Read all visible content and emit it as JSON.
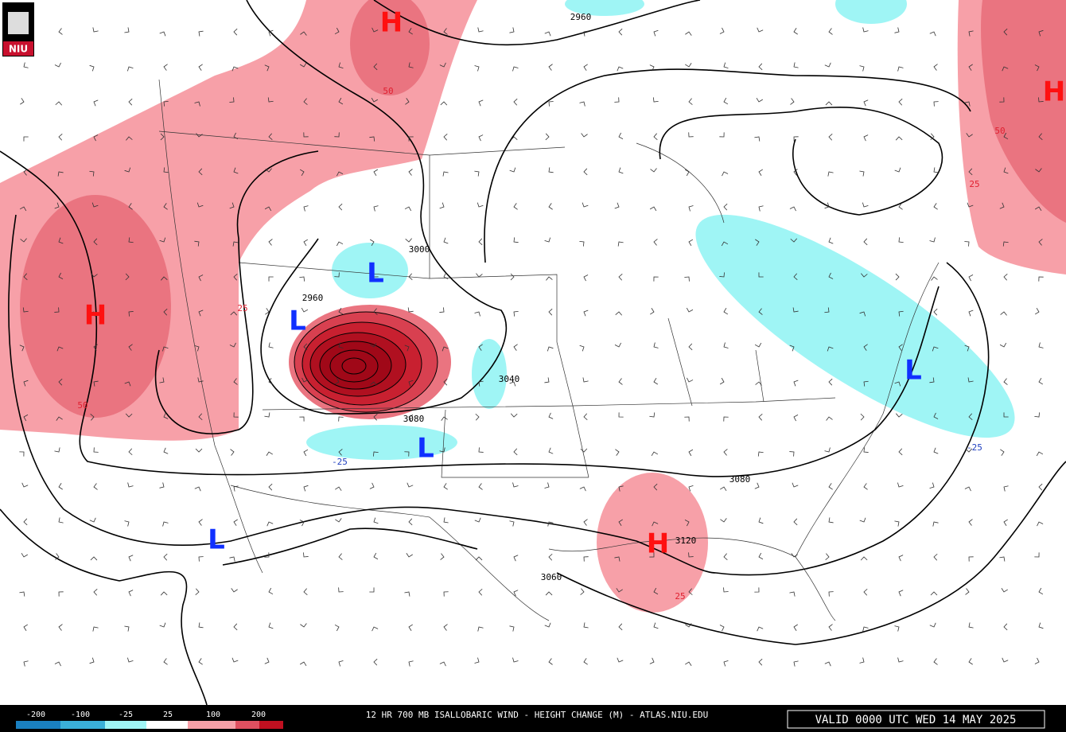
{
  "logo": "NIU",
  "title": "12 HR 700 MB ISALLOBARIC WIND - HEIGHT CHANGE (M) - ATLAS.NIU.EDU",
  "valid": "VALID 0000 UTC WED 14 MAY 2025",
  "legend": {
    "labels": [
      -200,
      -100,
      -25,
      25,
      100,
      200
    ]
  },
  "centers": [
    "H",
    "H",
    "H",
    "H",
    "L",
    "L",
    "L",
    "L",
    "L"
  ],
  "contour_labels": [
    "2960",
    "3000",
    "2960",
    "3040",
    "3080",
    "3080",
    "3120",
    "3060"
  ],
  "shade_labels": [
    "50",
    "50",
    "25",
    "25",
    "50",
    "25",
    "-25",
    "-25"
  ]
}
